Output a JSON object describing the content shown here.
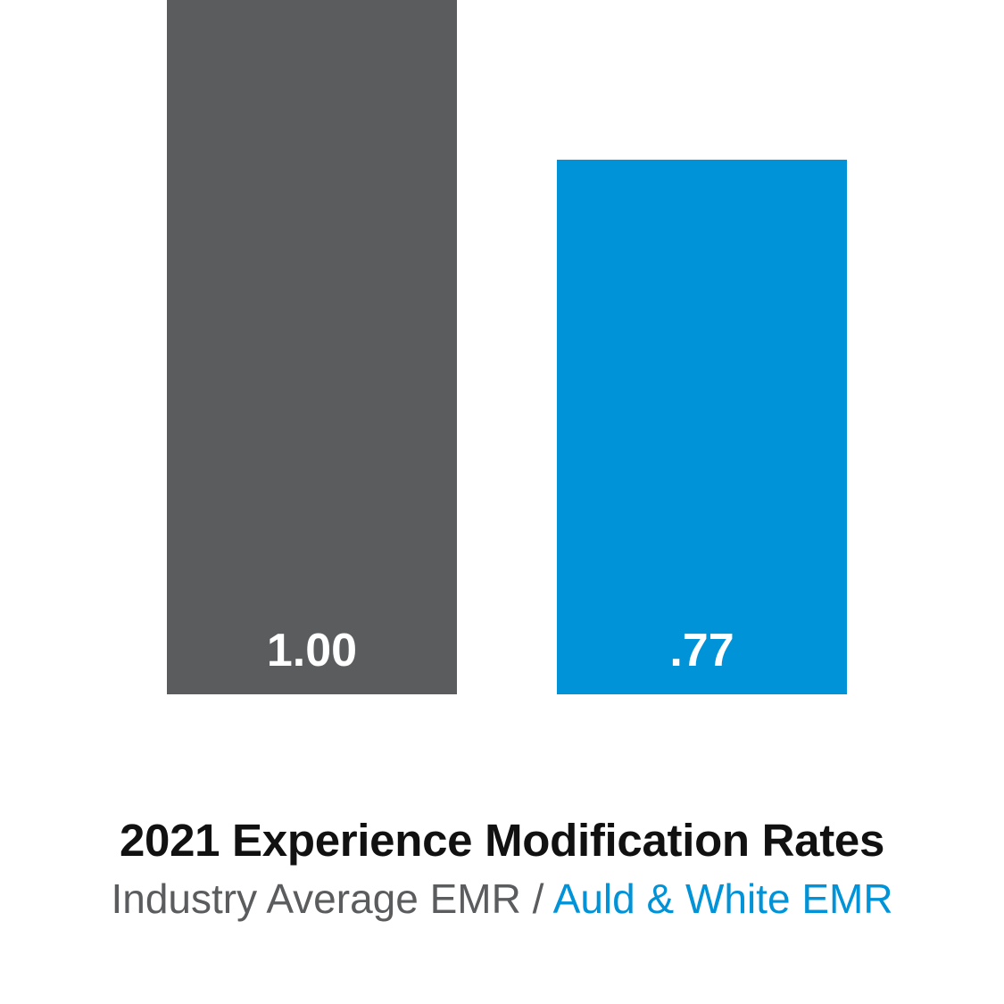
{
  "chart_data": {
    "type": "bar",
    "categories": [
      "Industry Average EMR",
      "Auld & White EMR"
    ],
    "values": [
      1.0,
      0.77
    ],
    "data_labels": [
      "1.00",
      ".77"
    ],
    "colors": [
      "#5b5c5e",
      "#0093d8"
    ],
    "title": "2021 Experience Modification Rates",
    "subtitle": {
      "part1": "Industry Average EMR",
      "separator": " / ",
      "part2": "Auld & White EMR"
    },
    "ylim": [
      0,
      1.0
    ],
    "grid": false
  }
}
